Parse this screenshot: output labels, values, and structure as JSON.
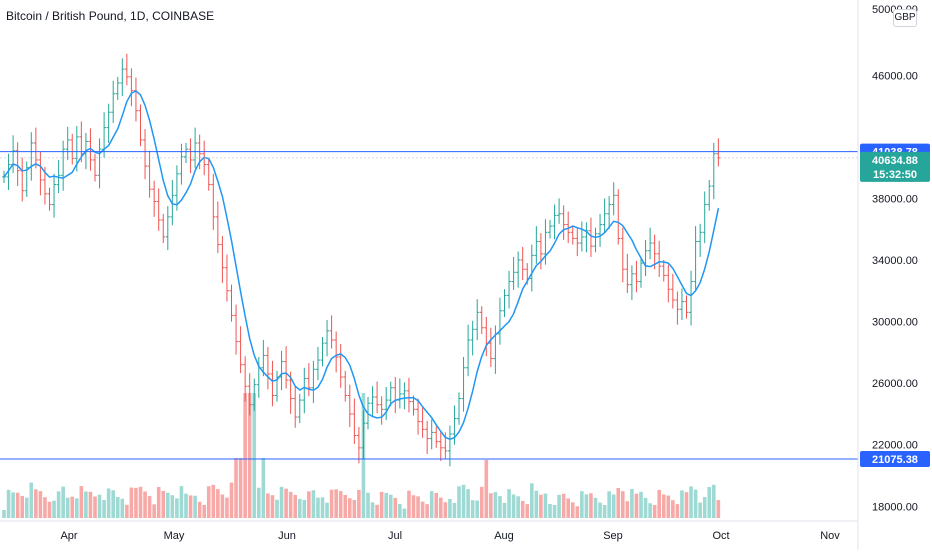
{
  "header": {
    "title": "Bitcoin / British Pound, 1D, COINBASE",
    "currency": "GBP"
  },
  "colors": {
    "up": "#26a69a",
    "down": "#ef5350",
    "ma": "#2196f3",
    "hline": "#2962ff",
    "axis_text": "#131722",
    "divider": "#e0e3eb"
  },
  "price_tags": {
    "upper_line": "41038.78",
    "last_price": "40634.88",
    "countdown": "15:32:50",
    "lower_line": "21075.38"
  },
  "chart_data": {
    "type": "candlestick",
    "title": "Bitcoin / British Pound, 1D, COINBASE",
    "x_ticks": [
      "Apr",
      "May",
      "Jun",
      "Jul",
      "Aug",
      "Sep",
      "Oct",
      "Nov"
    ],
    "y_ticks": [
      "18000.00",
      "22000.00",
      "26000.00",
      "30000.00",
      "34000.00",
      "38000.00",
      "46000.00"
    ],
    "y_top_label": "50000.00",
    "ylim": [
      17500,
      50500
    ],
    "horizontal_lines": [
      41038.78,
      21075.38
    ],
    "series": [
      {
        "name": "price",
        "values": [
          39400,
          40200,
          41100,
          39800,
          38500,
          40000,
          41600,
          40500,
          39200,
          38300,
          37600,
          38900,
          39500,
          41200,
          41800,
          40600,
          42000,
          40900,
          41700,
          40500,
          39500,
          41200,
          42600,
          43600,
          44800,
          45500,
          46400,
          45900,
          45000,
          43700,
          41800,
          40100,
          38600,
          37800,
          36600,
          35500,
          36800,
          38200,
          39600,
          40700,
          41200,
          40500,
          41600,
          40900,
          40200,
          38900,
          36800,
          35000,
          33500,
          32000,
          30400,
          28700,
          27200,
          25800,
          24600,
          25900,
          27000,
          27800,
          26600,
          25200,
          26400,
          27400,
          26200,
          25000,
          23800,
          24900,
          26300,
          25700,
          26900,
          27500,
          28600,
          29400,
          28800,
          27700,
          26400,
          25200,
          24000,
          22600,
          21800,
          23400,
          24700,
          25100,
          24600,
          24300,
          24900,
          25700,
          24900,
          25300,
          25500,
          24800,
          24300,
          23500,
          23000,
          22400,
          22800,
          22200,
          21800,
          21600,
          22700,
          23700,
          25000,
          27000,
          28800,
          29500,
          30600,
          29600,
          28600,
          27600,
          29200,
          30700,
          31700,
          32600,
          33200,
          34000,
          33400,
          32800,
          34300,
          35200,
          34400,
          35800,
          36200,
          36900,
          37000,
          36300,
          35800,
          35400,
          35100,
          35500,
          35900,
          34900,
          35700,
          36300,
          37000,
          37600,
          38200,
          35400,
          33400,
          32400,
          33100,
          32600,
          33800,
          34600,
          35100,
          34400,
          33600,
          33000,
          32100,
          31400,
          30800,
          31300,
          30600,
          32600,
          35200,
          35800,
          37600,
          38800,
          40900,
          40634
        ]
      }
    ],
    "volume": {
      "max_label": null
    }
  }
}
